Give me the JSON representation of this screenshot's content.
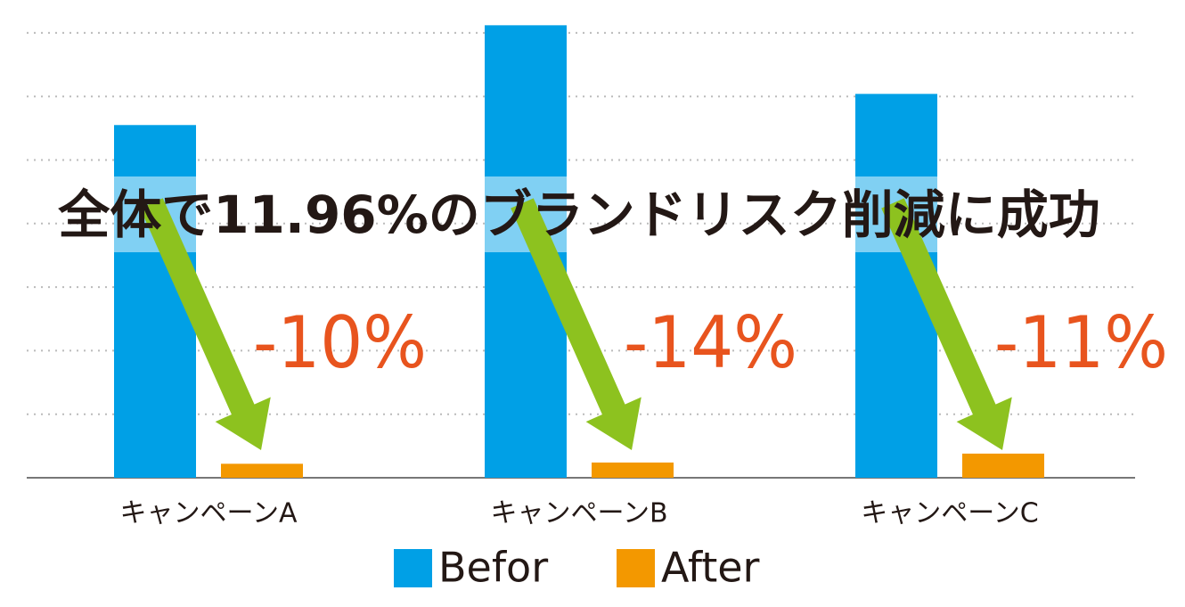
{
  "chart_data": {
    "type": "bar",
    "title": "全体で11.96%のブランドリスク削減に成功",
    "categories": [
      "キャンペーンA",
      "キャンペーンB",
      "キャンペーンC"
    ],
    "series": [
      {
        "name": "Befor",
        "color": "#00a0e6",
        "values": [
          5.55,
          7.12,
          6.04
        ]
      },
      {
        "name": "After",
        "color": "#f39800",
        "values": [
          0.22,
          0.24,
          0.38
        ]
      }
    ],
    "annotations": [
      "-10%",
      "-14%",
      "-11%"
    ],
    "ylim": [
      0,
      7.5
    ],
    "yticks": [
      0,
      1,
      2,
      3,
      4,
      5,
      6,
      7
    ],
    "grid": true
  }
}
